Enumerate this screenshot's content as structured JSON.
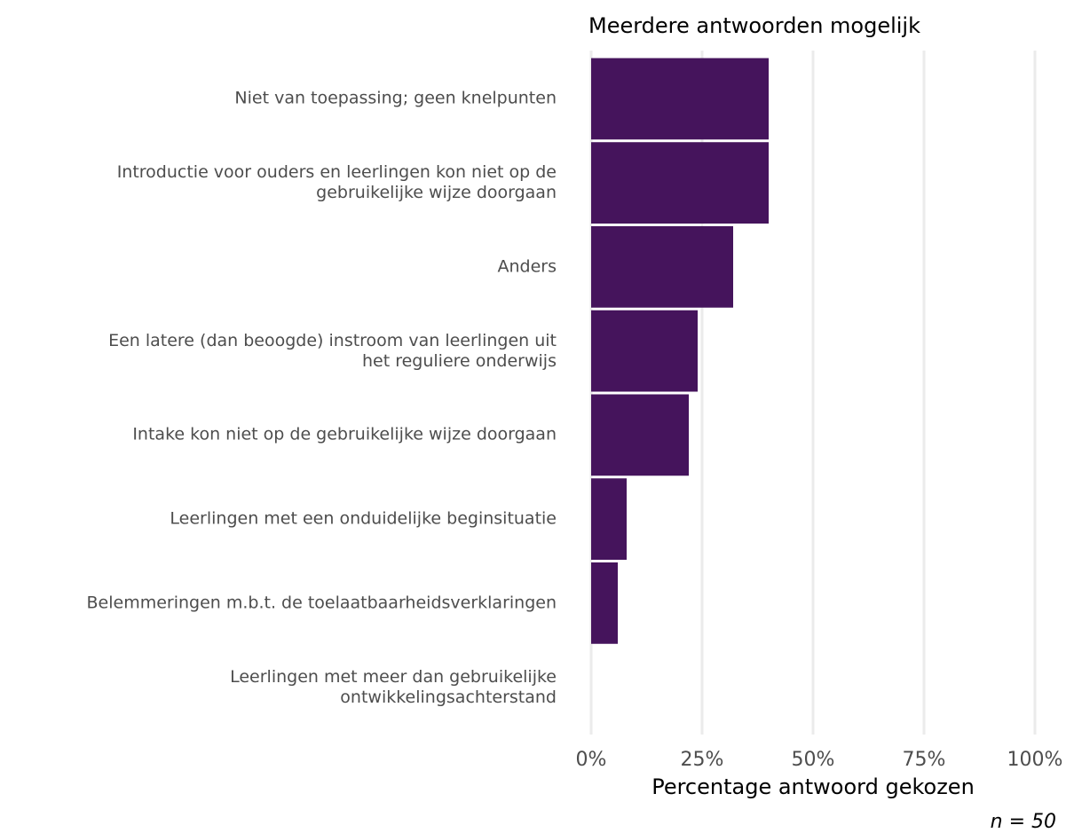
{
  "chart_data": {
    "type": "bar",
    "orientation": "horizontal",
    "subtitle": "Meerdere antwoorden mogelijk",
    "x_label": "Percentage antwoord gekozen",
    "caption": "n = 50",
    "categories": [
      "Niet van toepassing; geen knelpunten",
      "Introductie voor ouders en leerlingen kon niet op de\ngebruikelijke wijze doorgaan",
      "Anders",
      "Een latere (dan beoogde) instroom van leerlingen uit\nhet reguliere onderwijs",
      "Intake kon niet op de gebruikelijke wijze doorgaan",
      "Leerlingen met een onduidelijke beginsituatie",
      "Belemmeringen m.b.t. de toelaatbaarheidsverklaringen",
      "Leerlingen met meer dan gebruikelijke\nontwikkelingsachterstand"
    ],
    "values": [
      40,
      40,
      32,
      24,
      22,
      8,
      6,
      0
    ],
    "color": "#45145c",
    "xlim": [
      0,
      100
    ],
    "xticks": [
      {
        "value": 0,
        "label": "0%"
      },
      {
        "value": 25,
        "label": "25%"
      },
      {
        "value": 50,
        "label": "50%"
      },
      {
        "value": 75,
        "label": "75%"
      },
      {
        "value": 100,
        "label": "100%"
      }
    ],
    "grid": true
  }
}
